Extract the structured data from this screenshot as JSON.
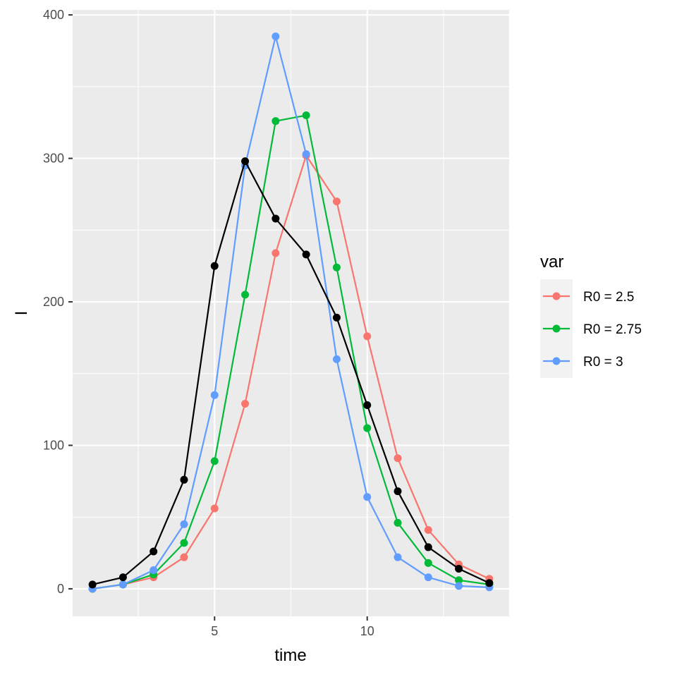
{
  "chart_data": {
    "type": "line",
    "xlabel": "time",
    "ylabel": "I",
    "xlim": [
      0.35,
      14.65
    ],
    "ylim": [
      -19.2,
      403.5
    ],
    "x_ticks": [
      5,
      10
    ],
    "x_minor_ticks": [
      2.5,
      7.5,
      12.5
    ],
    "y_ticks": [
      0,
      100,
      200,
      300,
      400
    ],
    "y_minor_ticks": [
      50,
      150,
      250,
      350
    ],
    "grid": true,
    "legend": {
      "title": "var",
      "position": "right",
      "entries": [
        {
          "label": "R0 = 2.5",
          "color": "#F8766D"
        },
        {
          "label": "R0 = 2.75",
          "color": "#00BA38"
        },
        {
          "label": "R0 = 3",
          "color": "#619CFF"
        }
      ]
    },
    "x": [
      1,
      2,
      3,
      4,
      5,
      6,
      7,
      8,
      9,
      10,
      11,
      12,
      13,
      14
    ],
    "series": [
      {
        "name": "R0 = 2.5",
        "color": "#F8766D",
        "values": [
          0,
          3,
          8,
          22,
          56,
          129,
          234,
          302,
          270,
          176,
          91,
          41,
          17,
          7
        ]
      },
      {
        "name": "R0 = 2.75",
        "color": "#00BA38",
        "values": [
          0,
          3,
          10,
          32,
          89,
          205,
          326,
          330,
          224,
          112,
          46,
          18,
          6,
          3
        ]
      },
      {
        "name": "R0 = 3",
        "color": "#619CFF",
        "values": [
          0,
          3,
          13,
          45,
          135,
          295,
          385,
          303,
          160,
          64,
          22,
          8,
          2,
          1
        ]
      },
      {
        "color": "#000000",
        "values": [
          3,
          8,
          26,
          76,
          225,
          298,
          258,
          233,
          189,
          128,
          68,
          29,
          14,
          4
        ]
      }
    ]
  }
}
